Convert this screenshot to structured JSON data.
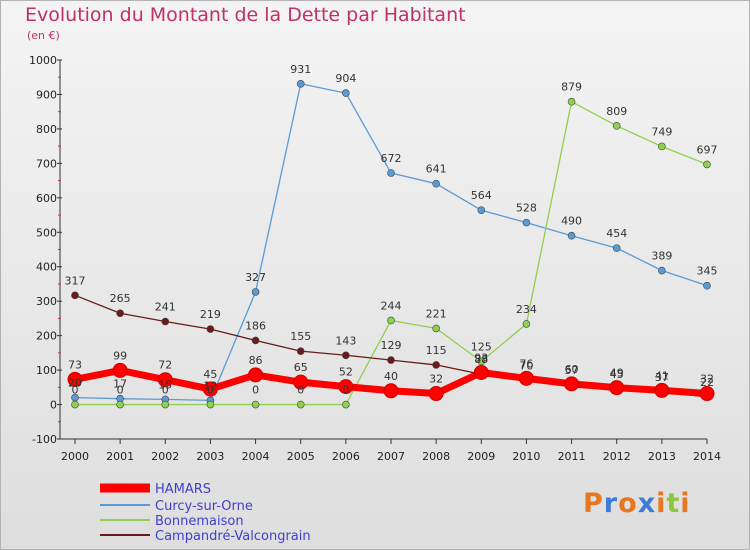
{
  "chart_data": {
    "type": "line",
    "title": "Evolution du Montant de la Dette par Habitant",
    "subtitle": "(en €)",
    "x": [
      "2000",
      "2001",
      "2002",
      "2003",
      "2004",
      "2005",
      "2006",
      "2007",
      "2008",
      "2009",
      "2010",
      "2011",
      "2012",
      "2013",
      "2014"
    ],
    "ylim": [
      -100,
      1000
    ],
    "yticks": [
      -100,
      0,
      100,
      200,
      300,
      400,
      500,
      600,
      700,
      800,
      900,
      1000
    ],
    "grid": false,
    "legend": "bottom-left",
    "series": [
      {
        "name": "HAMARS",
        "color": "#ff0000",
        "values": [
          73,
          99,
          72,
          45,
          86,
          65,
          52,
          40,
          32,
          93,
          76,
          60,
          49,
          41,
          32
        ],
        "labels": [
          "73",
          "99",
          "72",
          "45",
          "86",
          "65",
          "52",
          "40",
          "32",
          "93",
          "76",
          "60",
          "49",
          "41",
          "32"
        ]
      },
      {
        "name": "Curcy-sur-Orne",
        "color": "#5b9bd5",
        "values": [
          20,
          17,
          15,
          12,
          327,
          931,
          904,
          672,
          641,
          564,
          528,
          490,
          454,
          389,
          345
        ],
        "labels": [
          "20",
          "17",
          "15",
          "12",
          "327",
          "931",
          "904",
          "672",
          "641",
          "564",
          "528",
          "490",
          "454",
          "389",
          "345"
        ]
      },
      {
        "name": "Bonnemaison",
        "color": "#8fd14f",
        "values": [
          0,
          0,
          0,
          0,
          0,
          0,
          0,
          244,
          221,
          125,
          234,
          879,
          809,
          749,
          697
        ],
        "labels": [
          "0",
          "0",
          "0",
          "0",
          "0",
          "0",
          "0",
          "244",
          "221",
          "125",
          "234",
          "879",
          "809",
          "749",
          "697"
        ]
      },
      {
        "name": "Campandré-Valcongrain",
        "color": "#6b1a1a",
        "values": [
          317,
          265,
          241,
          219,
          186,
          155,
          143,
          129,
          115,
          88,
          70,
          57,
          45,
          37,
          22
        ],
        "labels": [
          "317",
          "265",
          "241",
          "219",
          "186",
          "155",
          "143",
          "129",
          "115",
          "88",
          "70",
          "57",
          "45",
          "37",
          "22"
        ]
      }
    ]
  },
  "logo": {
    "letters": [
      {
        "ch": "P",
        "color": "#e87722"
      },
      {
        "ch": "r",
        "color": "#3d7bd6"
      },
      {
        "ch": "o",
        "color": "#e87722"
      },
      {
        "ch": "x",
        "color": "#3d7bd6"
      },
      {
        "ch": "i",
        "color": "#e87722"
      },
      {
        "ch": "t",
        "color": "#8dc63f"
      },
      {
        "ch": "i",
        "color": "#e87722"
      }
    ]
  }
}
